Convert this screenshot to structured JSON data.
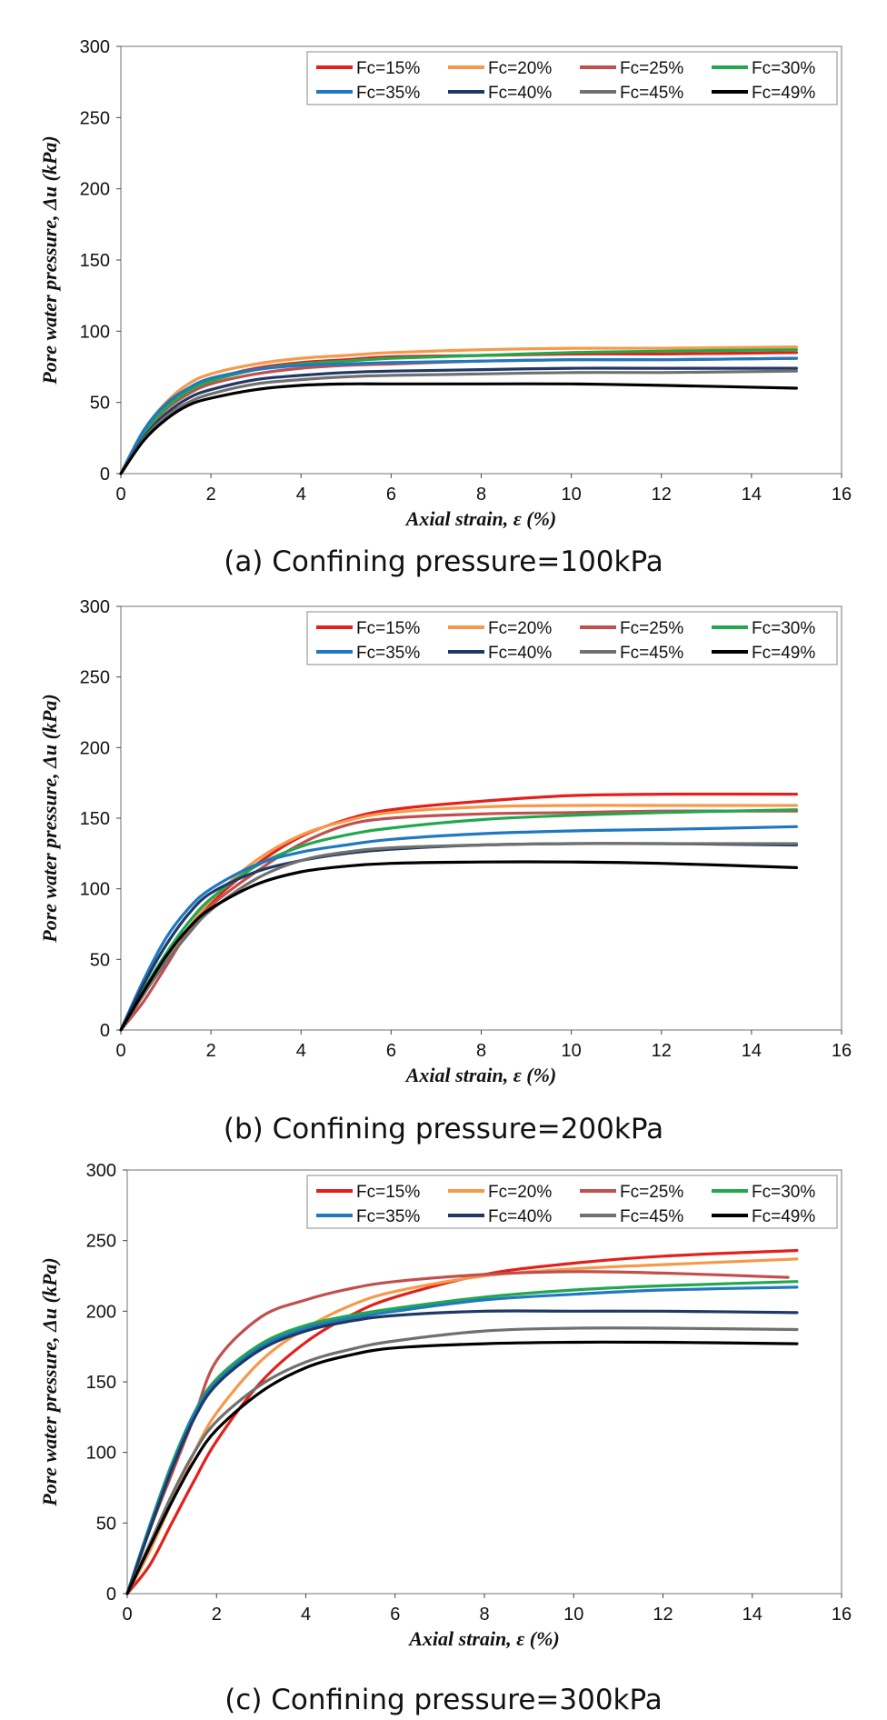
{
  "chart_data": [
    {
      "type": "line",
      "caption": "(a) Confining pressure=100kPa",
      "xlabel": "Axial strain, ε (%)",
      "ylabel": "Pore water pressure, Δu (kPa)",
      "xlim": [
        0,
        16
      ],
      "ylim": [
        0,
        300
      ],
      "xticks": [
        0,
        2,
        4,
        6,
        8,
        10,
        12,
        14,
        16
      ],
      "yticks": [
        0,
        50,
        100,
        150,
        200,
        250,
        300
      ],
      "legend_position": "top-right",
      "series": [
        {
          "name": "Fc=15%",
          "color": "#e3201b",
          "x": [
            0,
            0.5,
            1,
            1.5,
            2,
            3,
            4,
            5,
            6,
            8,
            10,
            12,
            15
          ],
          "y": [
            0,
            28,
            47,
            59,
            66,
            74,
            78,
            80,
            82,
            83,
            84,
            84,
            85
          ]
        },
        {
          "name": "Fc=20%",
          "color": "#f5994b",
          "x": [
            0,
            0.5,
            1,
            1.5,
            2,
            3,
            4,
            5,
            6,
            8,
            10,
            12,
            15
          ],
          "y": [
            0,
            30,
            50,
            63,
            70,
            77,
            81,
            83,
            85,
            87,
            88,
            88,
            89
          ]
        },
        {
          "name": "Fc=25%",
          "color": "#c0504d",
          "x": [
            0,
            0.5,
            1,
            1.5,
            2,
            3,
            4,
            5,
            6,
            8,
            10,
            12,
            15
          ],
          "y": [
            0,
            27,
            45,
            56,
            63,
            70,
            74,
            76,
            77,
            79,
            80,
            80,
            81
          ]
        },
        {
          "name": "Fc=30%",
          "color": "#21a84e",
          "x": [
            0,
            0.5,
            1,
            1.5,
            2,
            3,
            4,
            5,
            6,
            8,
            10,
            12,
            15
          ],
          "y": [
            0,
            28,
            46,
            58,
            65,
            73,
            77,
            79,
            81,
            83,
            85,
            86,
            87
          ]
        },
        {
          "name": "Fc=35%",
          "color": "#1f78c1",
          "x": [
            0,
            0.5,
            1,
            1.5,
            2,
            3,
            4,
            5,
            6,
            8,
            10,
            12,
            15
          ],
          "y": [
            0,
            30,
            49,
            60,
            67,
            73,
            76,
            77,
            78,
            79,
            80,
            80,
            81
          ]
        },
        {
          "name": "Fc=40%",
          "color": "#1f3864",
          "x": [
            0,
            0.5,
            1,
            1.5,
            2,
            3,
            4,
            5,
            6,
            8,
            10,
            12,
            15
          ],
          "y": [
            0,
            25,
            42,
            53,
            59,
            66,
            69,
            71,
            72,
            73,
            74,
            74,
            74
          ]
        },
        {
          "name": "Fc=45%",
          "color": "#707070",
          "x": [
            0,
            0.5,
            1,
            1.5,
            2,
            3,
            4,
            5,
            6,
            8,
            10,
            12,
            15
          ],
          "y": [
            0,
            24,
            40,
            50,
            56,
            63,
            66,
            68,
            69,
            70,
            71,
            71,
            72
          ]
        },
        {
          "name": "Fc=49%",
          "color": "#000000",
          "x": [
            0,
            0.5,
            1,
            1.5,
            2,
            3,
            4,
            5,
            6,
            8,
            10,
            12,
            15
          ],
          "y": [
            0,
            23,
            38,
            48,
            53,
            59,
            62,
            63,
            63,
            63,
            63,
            62,
            60
          ]
        }
      ]
    },
    {
      "type": "line",
      "caption": "(b) Confining pressure=200kPa",
      "xlabel": "Axial strain, ε (%)",
      "ylabel": "Pore water pressure, Δu (kPa)",
      "xlim": [
        0,
        16
      ],
      "ylim": [
        0,
        300
      ],
      "xticks": [
        0,
        2,
        4,
        6,
        8,
        10,
        12,
        14,
        16
      ],
      "yticks": [
        0,
        50,
        100,
        150,
        200,
        250,
        300
      ],
      "legend_position": "top-right",
      "series": [
        {
          "name": "Fc=15%",
          "color": "#e3201b",
          "x": [
            0,
            0.5,
            1,
            1.5,
            2,
            3,
            4,
            5,
            6,
            8,
            10,
            12,
            15
          ],
          "y": [
            0,
            25,
            50,
            72,
            90,
            117,
            137,
            149,
            156,
            162,
            166,
            167,
            167
          ]
        },
        {
          "name": "Fc=20%",
          "color": "#f5994b",
          "x": [
            0,
            0.5,
            1,
            1.5,
            2,
            3,
            4,
            5,
            6,
            8,
            10,
            12,
            15
          ],
          "y": [
            0,
            25,
            50,
            72,
            92,
            120,
            138,
            148,
            154,
            158,
            159,
            159,
            159
          ]
        },
        {
          "name": "Fc=25%",
          "color": "#c0504d",
          "x": [
            0,
            0.5,
            1,
            1.5,
            2,
            3,
            4,
            5,
            6,
            8,
            10,
            12,
            15
          ],
          "y": [
            0,
            20,
            45,
            70,
            88,
            112,
            132,
            145,
            150,
            153,
            154,
            155,
            155
          ]
        },
        {
          "name": "Fc=30%",
          "color": "#21a84e",
          "x": [
            0,
            0.5,
            1,
            1.5,
            2,
            3,
            4,
            5,
            6,
            8,
            10,
            12,
            15
          ],
          "y": [
            0,
            28,
            54,
            76,
            93,
            116,
            130,
            138,
            143,
            149,
            152,
            154,
            156
          ]
        },
        {
          "name": "Fc=35%",
          "color": "#1f78c1",
          "x": [
            0,
            0.5,
            1,
            1.5,
            2,
            3,
            4,
            5,
            6,
            8,
            10,
            12,
            15
          ],
          "y": [
            0,
            35,
            65,
            86,
            100,
            117,
            126,
            131,
            135,
            139,
            141,
            142,
            144
          ]
        },
        {
          "name": "Fc=40%",
          "color": "#1f3864",
          "x": [
            0,
            0.5,
            1,
            1.5,
            2,
            3,
            4,
            5,
            6,
            8,
            10,
            12,
            15
          ],
          "y": [
            0,
            32,
            60,
            82,
            97,
            112,
            120,
            125,
            128,
            131,
            132,
            132,
            131
          ]
        },
        {
          "name": "Fc=45%",
          "color": "#707070",
          "x": [
            0,
            0.5,
            1,
            1.5,
            2,
            3,
            4,
            5,
            6,
            8,
            10,
            12,
            15
          ],
          "y": [
            0,
            25,
            48,
            68,
            85,
            107,
            120,
            126,
            129,
            131,
            132,
            132,
            132
          ]
        },
        {
          "name": "Fc=49%",
          "color": "#000000",
          "x": [
            0,
            0.5,
            1,
            1.5,
            2,
            3,
            4,
            5,
            6,
            8,
            10,
            12,
            15
          ],
          "y": [
            0,
            27,
            52,
            72,
            86,
            103,
            112,
            116,
            118,
            119,
            119,
            118,
            115
          ]
        }
      ]
    },
    {
      "type": "line",
      "caption": "(c) Confining pressure=300kPa",
      "xlabel": "Axial strain, ε (%)",
      "ylabel": "Pore water pressure, Δu (kPa)",
      "xlim": [
        0,
        16
      ],
      "ylim": [
        0,
        300
      ],
      "xticks": [
        0,
        2,
        4,
        6,
        8,
        10,
        12,
        14,
        16
      ],
      "yticks": [
        0,
        50,
        100,
        150,
        200,
        250,
        300
      ],
      "legend_position": "top-right",
      "series": [
        {
          "name": "Fc=15%",
          "color": "#e3201b",
          "x": [
            0,
            0.5,
            1,
            1.5,
            2,
            3,
            4,
            5,
            6,
            8,
            10,
            12,
            15
          ],
          "y": [
            0,
            20,
            50,
            80,
            108,
            150,
            178,
            197,
            210,
            226,
            234,
            239,
            243
          ]
        },
        {
          "name": "Fc=20%",
          "color": "#f5994b",
          "x": [
            0,
            0.5,
            1,
            1.5,
            2,
            3,
            4,
            5,
            6,
            8,
            10,
            12,
            15
          ],
          "y": [
            0,
            30,
            65,
            100,
            128,
            165,
            188,
            204,
            214,
            225,
            230,
            233,
            237
          ]
        },
        {
          "name": "Fc=25%",
          "color": "#c0504d",
          "x": [
            0,
            0.5,
            1,
            1.5,
            2,
            3,
            4,
            5,
            6,
            8,
            10,
            12,
            14.8
          ],
          "y": [
            0,
            45,
            85,
            125,
            165,
            196,
            208,
            216,
            221,
            226,
            228,
            227,
            224
          ]
        },
        {
          "name": "Fc=30%",
          "color": "#21a84e",
          "x": [
            0,
            0.5,
            1,
            1.5,
            2,
            3,
            4,
            5,
            6,
            8,
            10,
            12,
            15
          ],
          "y": [
            0,
            48,
            92,
            128,
            152,
            177,
            190,
            197,
            202,
            210,
            215,
            218,
            221
          ]
        },
        {
          "name": "Fc=35%",
          "color": "#1f78c1",
          "x": [
            0,
            0.5,
            1,
            1.5,
            2,
            3,
            4,
            5,
            6,
            8,
            10,
            12,
            15
          ],
          "y": [
            0,
            47,
            90,
            127,
            150,
            175,
            188,
            195,
            200,
            208,
            212,
            215,
            217
          ]
        },
        {
          "name": "Fc=40%",
          "color": "#1f3864",
          "x": [
            0,
            0.5,
            1,
            1.5,
            2,
            3,
            4,
            5,
            6,
            8,
            10,
            12,
            15
          ],
          "y": [
            0,
            45,
            88,
            124,
            148,
            173,
            186,
            193,
            197,
            200,
            200,
            200,
            199
          ]
        },
        {
          "name": "Fc=45%",
          "color": "#707070",
          "x": [
            0,
            0.5,
            1,
            1.5,
            2,
            3,
            4,
            5,
            6,
            8,
            10,
            12,
            15
          ],
          "y": [
            0,
            35,
            70,
            100,
            122,
            148,
            164,
            173,
            179,
            186,
            188,
            188,
            187
          ]
        },
        {
          "name": "Fc=49%",
          "color": "#000000",
          "x": [
            0,
            0.5,
            1,
            1.5,
            2,
            3,
            4,
            5,
            6,
            8,
            10,
            12,
            15
          ],
          "y": [
            0,
            33,
            65,
            94,
            116,
            143,
            160,
            169,
            174,
            177,
            178,
            178,
            177
          ]
        }
      ]
    }
  ]
}
